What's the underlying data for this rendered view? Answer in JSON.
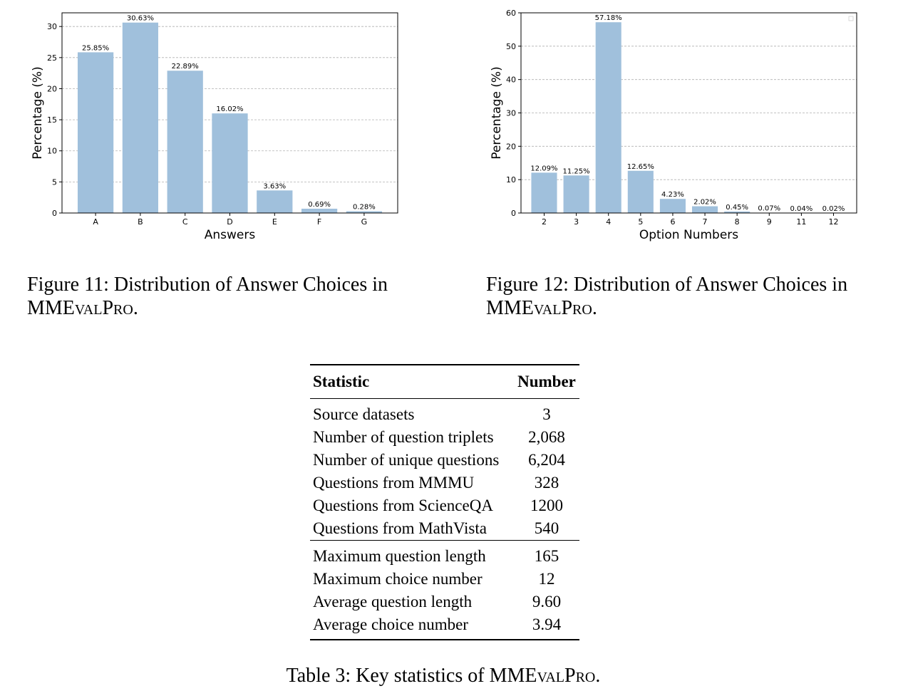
{
  "chart_data": [
    {
      "type": "bar",
      "categories": [
        "A",
        "B",
        "C",
        "D",
        "E",
        "F",
        "G"
      ],
      "values": [
        25.85,
        30.63,
        22.89,
        16.02,
        3.63,
        0.69,
        0.28
      ],
      "value_labels": [
        "25.85%",
        "30.63%",
        "22.89%",
        "16.02%",
        "3.63%",
        "0.69%",
        "0.28%"
      ],
      "xlabel": "Answers",
      "ylabel": "Percentage (%)",
      "ylim": [
        0,
        32.2
      ],
      "yticks": [
        0,
        5,
        10,
        15,
        20,
        25,
        30
      ],
      "grid": "horizontal dashed",
      "color": "#a0c0dc"
    },
    {
      "type": "bar",
      "categories": [
        "2",
        "3",
        "4",
        "5",
        "6",
        "7",
        "8",
        "9",
        "11",
        "12"
      ],
      "values": [
        12.09,
        11.25,
        57.18,
        12.65,
        4.23,
        2.02,
        0.45,
        0.07,
        0.04,
        0.02
      ],
      "value_labels": [
        "12.09%",
        "11.25%",
        "57.18%",
        "12.65%",
        "4.23%",
        "2.02%",
        "0.45%",
        "0.07%",
        "0.04%",
        "0.02%"
      ],
      "xlabel": "Option Numbers",
      "ylabel": "Percentage (%)",
      "ylim": [
        0,
        60
      ],
      "yticks": [
        0,
        10,
        20,
        30,
        40,
        50,
        60
      ],
      "grid": "horizontal dashed",
      "color": "#a0c0dc"
    }
  ],
  "figure11": {
    "caption_prefix": "Figure 11: Distribution of Answer Choices in",
    "name_a": "MME",
    "name_b": "val",
    "name_c": "P",
    "name_d": "ro",
    "name_end": "."
  },
  "figure12": {
    "caption_prefix": "Figure 12: Distribution of Answer Choices in",
    "name_a": "MME",
    "name_b": "val",
    "name_c": "P",
    "name_d": "ro",
    "name_end": "."
  },
  "table": {
    "header_statistic": "Statistic",
    "header_number": "Number",
    "rows": [
      {
        "label": "Source datasets",
        "value": "3"
      },
      {
        "label": "Number of question triplets",
        "value": "2,068"
      },
      {
        "label": "Number of unique questions",
        "value": "6,204"
      },
      {
        "label": "Questions from MMMU",
        "value": "328"
      },
      {
        "label": "Questions from ScienceQA",
        "value": "1200"
      },
      {
        "label": "Questions from MathVista",
        "value": "540"
      },
      {
        "label": "Maximum question length",
        "value": "165"
      },
      {
        "label": "Maximum choice number",
        "value": "12"
      },
      {
        "label": "Average question length",
        "value": "9.60"
      },
      {
        "label": "Average choice number",
        "value": "3.94"
      }
    ],
    "caption_prefix": "Table 3: Key statistics of",
    "name_a": "MME",
    "name_b": "val",
    "name_c": "P",
    "name_d": "ro",
    "name_end": "."
  }
}
